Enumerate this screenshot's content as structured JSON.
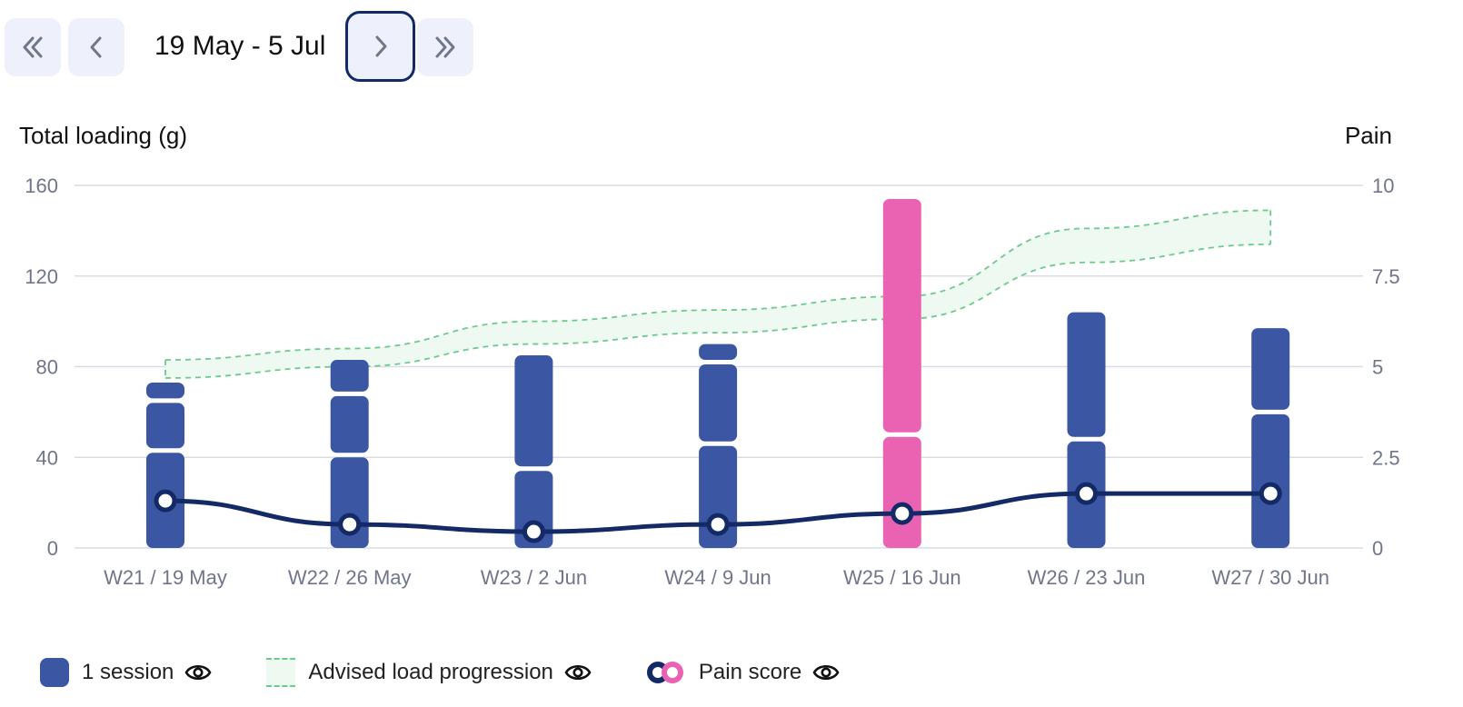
{
  "navigation": {
    "range_label": "19 May - 5 Jul"
  },
  "chart_data": {
    "type": "bar",
    "categories": [
      "W21 / 19 May",
      "W22 / 26 May",
      "W23 / 2 Jun",
      "W24 / 9 Jun",
      "W25 / 16 Jun",
      "W26 / 23 Jun",
      "W27 / 30 Jun"
    ],
    "y_left": {
      "label": "Total loading (g)",
      "ticks": [
        "0",
        "40",
        "80",
        "120",
        "160"
      ],
      "range": [
        0,
        160
      ]
    },
    "y_right": {
      "label": "Pain",
      "ticks": [
        "0",
        "2.5",
        "5",
        "7.5",
        "10"
      ],
      "range": [
        0,
        10
      ]
    },
    "sessions": [
      [
        42,
        22,
        9
      ],
      [
        40,
        27,
        16
      ],
      [
        34,
        51
      ],
      [
        45,
        36,
        9
      ],
      [
        49,
        105
      ],
      [
        47,
        57
      ],
      [
        59,
        38
      ]
    ],
    "highlight_index": 4,
    "advised_band": {
      "upper": [
        83,
        88,
        100,
        105,
        111,
        141,
        149
      ],
      "lower": [
        75,
        80,
        90,
        95,
        101,
        126,
        134
      ]
    },
    "pain": [
      1.3,
      0.65,
      0.45,
      0.65,
      0.95,
      1.5,
      1.5
    ],
    "grid": true,
    "colors": {
      "session": "#3b57a3",
      "highlight": "#ea63b3",
      "pain_line": "#132a66",
      "band_fill": "#eef9f1",
      "band_edge": "#6ccb8c",
      "grid": "#d9dce6",
      "tick": "#70758a"
    },
    "legend": [
      {
        "label": "1 session",
        "icon": "eye-icon"
      },
      {
        "label": "Advised load progression",
        "icon": "eye-icon"
      },
      {
        "label": "Pain score",
        "icon": "eye-icon"
      }
    ]
  }
}
